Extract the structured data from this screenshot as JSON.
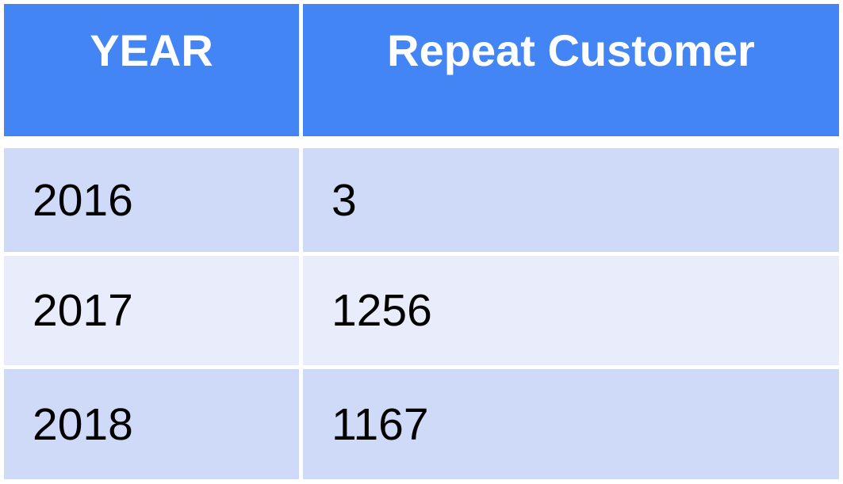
{
  "chart_data": {
    "type": "table",
    "columns": [
      "YEAR",
      "Repeat Customer"
    ],
    "rows": [
      [
        "2016",
        "3"
      ],
      [
        "2017",
        "1256"
      ],
      [
        "2018",
        "1167"
      ]
    ],
    "colors": {
      "header": "#4485F5",
      "row_odd": "#CFD9F8",
      "row_even": "#E9EDFB"
    }
  }
}
